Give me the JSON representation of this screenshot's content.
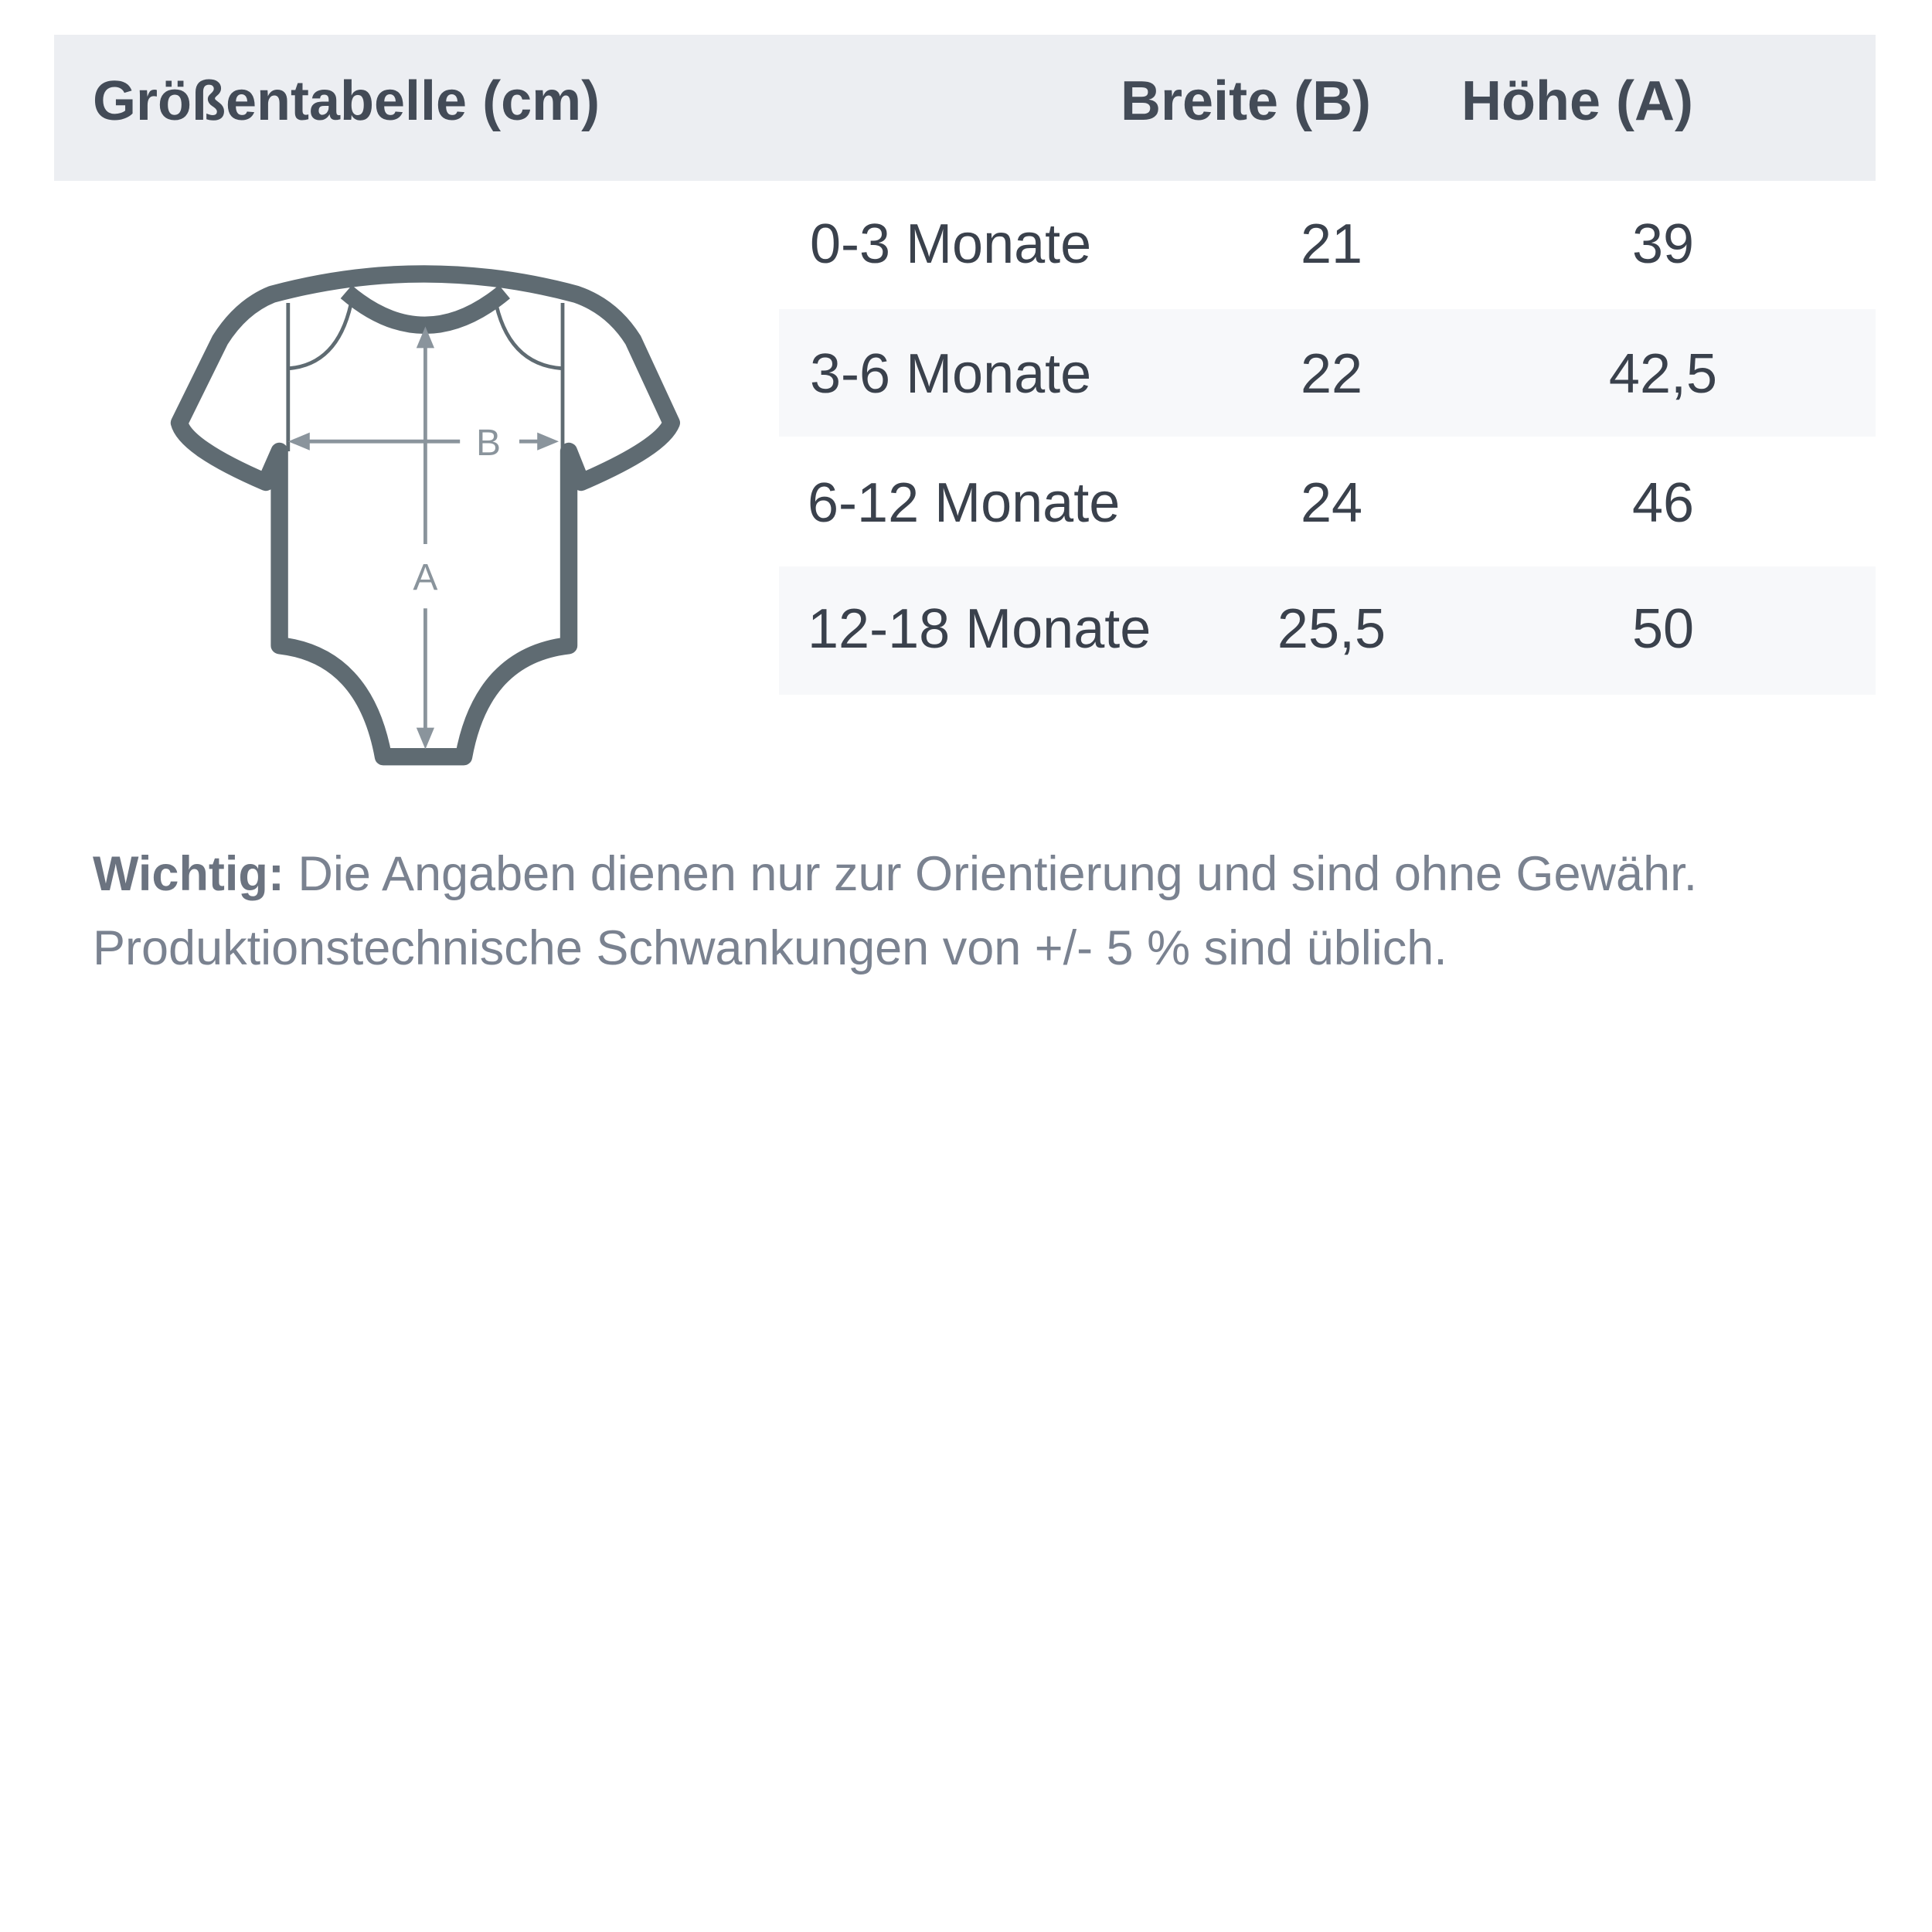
{
  "header": {
    "title": "Größentabelle (cm)",
    "col_width": "Breite (B)",
    "col_height": "Höhe (A)"
  },
  "rows": [
    {
      "size": "0-3 Monate",
      "width": "21",
      "height": "39"
    },
    {
      "size": "3-6 Monate",
      "width": "22",
      "height": "42,5"
    },
    {
      "size": "6-12 Monate",
      "width": "24",
      "height": "46"
    },
    {
      "size": "12-18 Monate",
      "width": "25,5",
      "height": "50"
    }
  ],
  "diagram": {
    "label_b": "B",
    "label_a": "A",
    "icon": "baby-bodysuit-icon"
  },
  "note": {
    "bold": "Wichtig:",
    "line1": " Die Angaben dienen nur zur Orientierung und sind ohne Gewähr.",
    "line2": "Produktionstechnische Schwankungen von +/- 5 % sind üblich."
  },
  "colors": {
    "header_bg": "#eceef2",
    "stripe_bg": "#f7f8fa",
    "outline": "#5f6b72",
    "arrow": "#8a949c"
  }
}
